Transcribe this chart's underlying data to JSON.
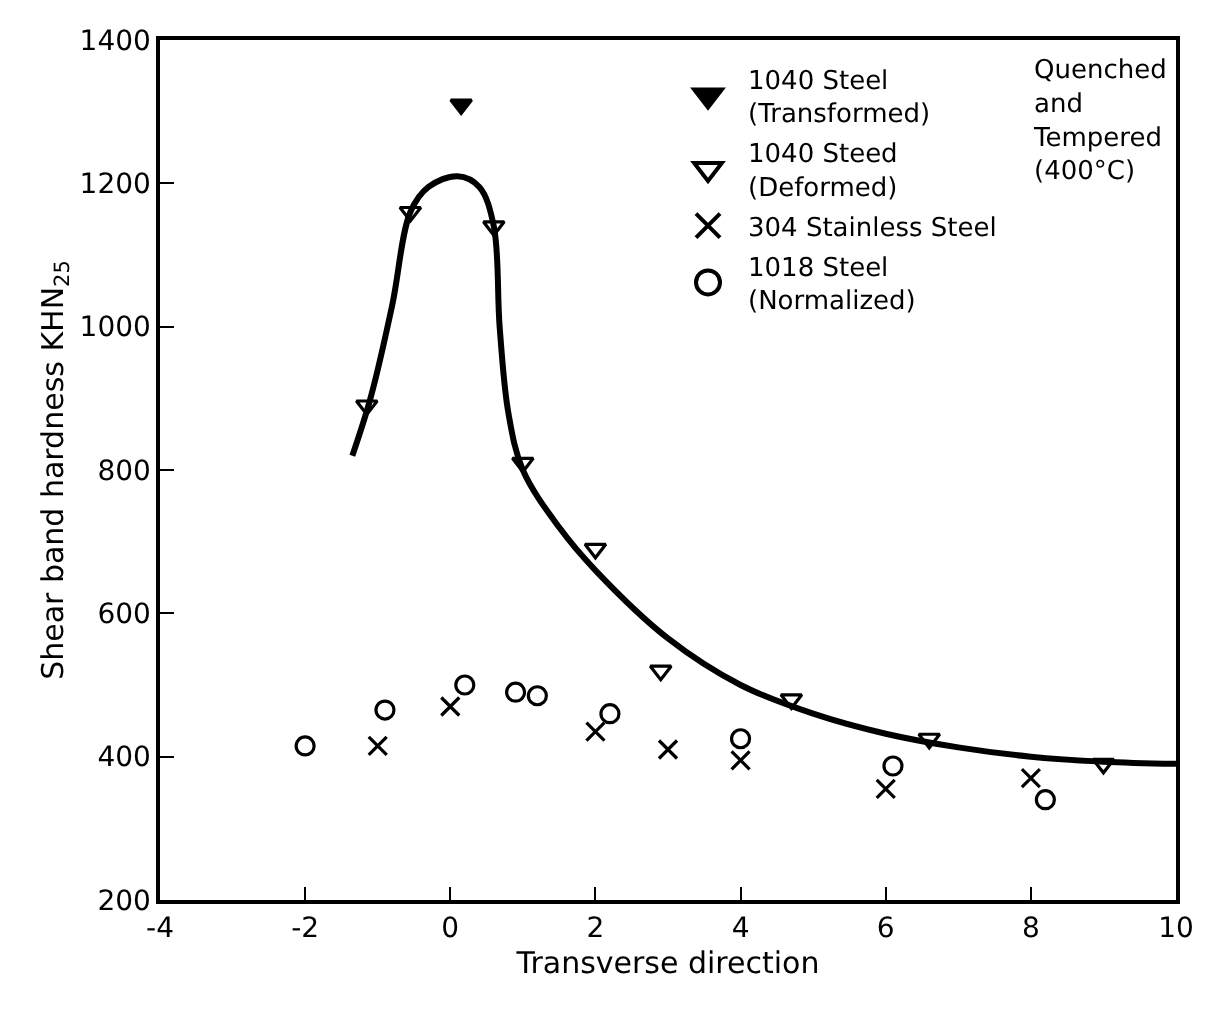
{
  "chart_data": {
    "type": "scatter",
    "xlabel": "Transverse direction",
    "ylabel": "Shear band hardness KHN$_{25}$",
    "xlim": [
      -4,
      10
    ],
    "xticks": [
      -4,
      -2,
      0,
      2,
      4,
      6,
      8,
      10
    ],
    "ylim": [
      200,
      1400
    ],
    "yticks": [
      200,
      400,
      600,
      800,
      1000,
      1200,
      1400
    ],
    "legend": "top right",
    "annotations": [
      "Quenched\nand\nTempered\n(400°C)"
    ],
    "series": [
      {
        "name": "1040 Steel\n(Transformed)",
        "color": "#000000",
        "marker": "triangle_filled",
        "x": [
          0.15
        ],
        "values": [
          1310
        ]
      },
      {
        "name": "1040 Steed\n(Deformed)",
        "color": "#000000",
        "marker": "triangle",
        "x": [
          -1.15,
          -0.55,
          0.6,
          1,
          2,
          2.9,
          4.7,
          6.6,
          9
        ],
        "values": [
          890,
          1160,
          1140,
          810,
          690,
          520,
          480,
          425,
          390
        ]
      },
      {
        "name": "304 Stainless Steel",
        "color": "#000000",
        "marker": "cross",
        "x": [
          -1,
          0,
          2,
          3,
          4,
          6,
          8
        ],
        "values": [
          415,
          470,
          435,
          410,
          395,
          355,
          370
        ]
      },
      {
        "name": "1018 Steel\n(Normalized)",
        "color": "#000000",
        "marker": "circle",
        "x": [
          -2,
          -0.9,
          0.2,
          0.9,
          1.2,
          2.2,
          4,
          6.1,
          8.2
        ],
        "values": [
          415,
          465,
          500,
          490,
          485,
          460,
          425,
          387,
          340
        ]
      },
      {
        "type": "line",
        "color": "#000000",
        "x": [
          -1.35,
          -1.1,
          -0.8,
          -0.55,
          -0.3,
          0.1,
          0.4,
          0.6,
          0.68,
          0.8,
          1,
          1.5,
          2,
          3,
          4,
          5,
          6,
          7,
          8,
          9,
          10
        ],
        "values": [
          820,
          900,
          1030,
          1160,
          1195,
          1210,
          1195,
          1140,
          1000,
          880,
          800,
          720,
          660,
          565,
          500,
          460,
          432,
          413,
          400,
          393,
          390
        ]
      }
    ]
  }
}
